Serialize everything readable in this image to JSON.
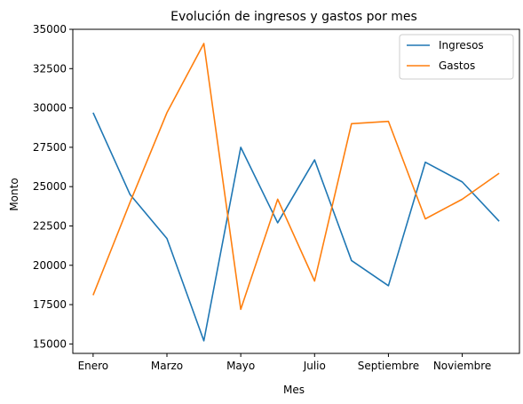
{
  "chart_data": {
    "type": "line",
    "title": "Evolución de ingresos y gastos por mes",
    "xlabel": "Mes",
    "ylabel": "Monto",
    "x_tick_labels": [
      "Enero",
      "Marzo",
      "Mayo",
      "Julio",
      "Septiembre",
      "Noviembre"
    ],
    "x_tick_positions": [
      0,
      2,
      4,
      6,
      8,
      10
    ],
    "x_count": 12,
    "xlim": [
      -0.55,
      11.55
    ],
    "ylim": [
      14400,
      35000
    ],
    "y_ticks": [
      15000,
      17500,
      20000,
      22500,
      25000,
      27500,
      30000,
      32500,
      35000
    ],
    "grid": false,
    "legend_position": "top-right",
    "series": [
      {
        "name": "Ingresos",
        "color": "#1f77b4",
        "values": [
          29700,
          24500,
          21700,
          15200,
          27500,
          22700,
          26700,
          20300,
          18700,
          26550,
          25300,
          22800
        ]
      },
      {
        "name": "Gastos",
        "color": "#ff7f0e",
        "values": [
          18100,
          24000,
          29700,
          34100,
          17200,
          24200,
          19000,
          29000,
          29150,
          22950,
          24200,
          25850
        ]
      }
    ]
  }
}
